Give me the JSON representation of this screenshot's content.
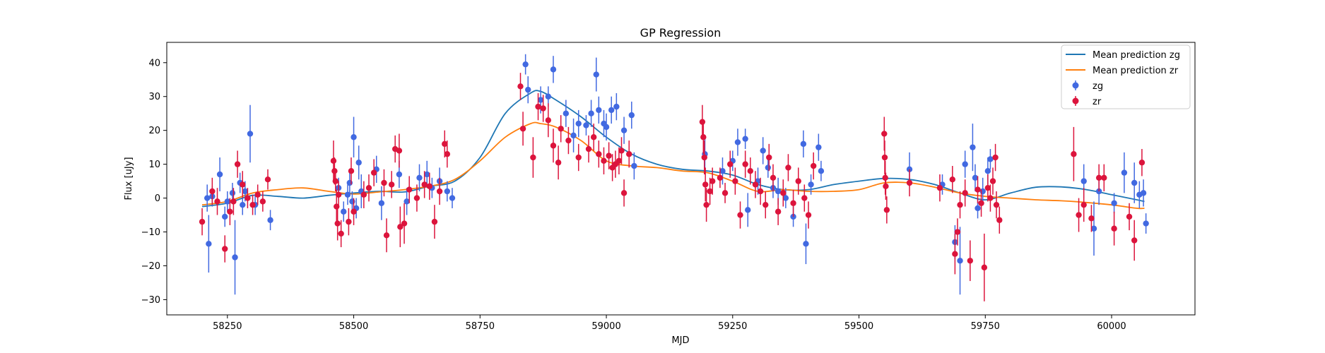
{
  "chart_data": {
    "type": "scatter",
    "title": "GP Regression",
    "xlabel": "MJD",
    "ylabel": "Flux [uJy]",
    "xlim": [
      58130,
      60165
    ],
    "ylim": [
      -34.5,
      46
    ],
    "x_ticks": [
      58250,
      58500,
      58750,
      59000,
      59250,
      59500,
      59750,
      60000
    ],
    "y_ticks": [
      -30,
      -20,
      -10,
      0,
      10,
      20,
      30,
      40
    ],
    "grid": false,
    "legend_position": "top-right",
    "legend": [
      {
        "label": "Mean prediction zg",
        "kind": "line",
        "color": "#1f77b4"
      },
      {
        "label": "Mean prediction zr",
        "kind": "line",
        "color": "#ff7f0e"
      },
      {
        "label": "zg",
        "kind": "errorbar",
        "color": "#4169e1"
      },
      {
        "label": "zr",
        "kind": "errorbar",
        "color": "#dc143c"
      }
    ],
    "lines": [
      {
        "name": "Mean prediction zg",
        "color": "#1f77b4",
        "x": [
          58200,
          58250,
          58300,
          58350,
          58400,
          58450,
          58500,
          58550,
          58600,
          58650,
          58700,
          58750,
          58800,
          58850,
          58870,
          58900,
          58950,
          59000,
          59050,
          59100,
          59150,
          59200,
          59250,
          59300,
          59350,
          59400,
          59450,
          59500,
          59550,
          59600,
          59650,
          59700,
          59750,
          59800,
          59850,
          59900,
          59950,
          60000,
          60050,
          60065
        ],
        "y": [
          -2.5,
          -1.5,
          0.8,
          0.5,
          0,
          0.8,
          1.5,
          2,
          1.8,
          3.5,
          5,
          12,
          25,
          31,
          31.5,
          29,
          24,
          18,
          13,
          10,
          8.5,
          8,
          6.8,
          4,
          2.5,
          2.5,
          4,
          5,
          5.8,
          5.5,
          4,
          1.5,
          -0.5,
          1.5,
          3.2,
          3.3,
          2.5,
          1,
          -0.5,
          -1
        ]
      },
      {
        "name": "Mean prediction zr",
        "color": "#ff7f0e",
        "x": [
          58200,
          58250,
          58300,
          58350,
          58400,
          58450,
          58500,
          58550,
          58600,
          58650,
          58700,
          58750,
          58800,
          58850,
          58870,
          58900,
          58950,
          59000,
          59050,
          59100,
          59150,
          59200,
          59250,
          59300,
          59350,
          59400,
          59450,
          59500,
          59550,
          59600,
          59650,
          59700,
          59750,
          59800,
          59850,
          59900,
          59950,
          60000,
          60050,
          60065
        ],
        "y": [
          -2,
          -1,
          1.5,
          2.5,
          3,
          2,
          1.2,
          1.8,
          2.5,
          3.5,
          5.5,
          11,
          18,
          22,
          22,
          21,
          17,
          11,
          9.5,
          9,
          8,
          7.5,
          5,
          2,
          2.5,
          2,
          2,
          2.5,
          4.5,
          4.5,
          3.2,
          1.5,
          0.5,
          0,
          -0.5,
          -0.8,
          -1.3,
          -2,
          -3,
          -3
        ]
      }
    ],
    "series": [
      {
        "name": "zg",
        "color": "#4169e1",
        "points": [
          [
            58210,
            0,
            4
          ],
          [
            58213,
            -13.5,
            8.5
          ],
          [
            58220,
            0.5,
            3
          ],
          [
            58235,
            7,
            5
          ],
          [
            58245,
            -5.5,
            3
          ],
          [
            58250,
            -1,
            3
          ],
          [
            58260,
            1.5,
            3
          ],
          [
            58265,
            -17.5,
            11
          ],
          [
            58275,
            4.5,
            3
          ],
          [
            58280,
            -2,
            3
          ],
          [
            58285,
            2,
            3
          ],
          [
            58295,
            19,
            8.5
          ],
          [
            58305,
            -2,
            3
          ],
          [
            58335,
            -6.5,
            3
          ],
          [
            58470,
            3,
            3
          ],
          [
            58480,
            -4,
            3
          ],
          [
            58488,
            1,
            3
          ],
          [
            58492,
            4.5,
            3
          ],
          [
            58497,
            -1,
            3
          ],
          [
            58500,
            18,
            6
          ],
          [
            58505,
            -3,
            3
          ],
          [
            58510,
            10.5,
            5
          ],
          [
            58515,
            2,
            5
          ],
          [
            58545,
            8.5,
            4
          ],
          [
            58555,
            -1.5,
            5
          ],
          [
            58590,
            7,
            4
          ],
          [
            58605,
            -1,
            4
          ],
          [
            58630,
            6,
            4
          ],
          [
            58645,
            7,
            4
          ],
          [
            58655,
            3,
            3
          ],
          [
            58670,
            5,
            4
          ],
          [
            58685,
            2,
            3
          ],
          [
            58695,
            0,
            3
          ],
          [
            58840,
            39.5,
            3
          ],
          [
            58845,
            32,
            4
          ],
          [
            58870,
            29,
            4
          ],
          [
            58885,
            30,
            3
          ],
          [
            58895,
            38,
            4
          ],
          [
            58920,
            25,
            4
          ],
          [
            58935,
            18.5,
            5
          ],
          [
            58945,
            22,
            4
          ],
          [
            58960,
            21.5,
            3
          ],
          [
            58970,
            25,
            4
          ],
          [
            58980,
            36.5,
            5
          ],
          [
            58985,
            26,
            4
          ],
          [
            58995,
            22,
            4
          ],
          [
            59000,
            21,
            4
          ],
          [
            59010,
            26,
            4
          ],
          [
            59020,
            27,
            4
          ],
          [
            59035,
            20,
            4
          ],
          [
            59050,
            24.5,
            4
          ],
          [
            59055,
            9.5,
            4
          ],
          [
            59195,
            13,
            5
          ],
          [
            59230,
            8,
            4
          ],
          [
            59250,
            11,
            3
          ],
          [
            59260,
            16.5,
            4
          ],
          [
            59275,
            17.5,
            3
          ],
          [
            59280,
            -3.5,
            5
          ],
          [
            59300,
            5,
            4
          ],
          [
            59310,
            14,
            4
          ],
          [
            59320,
            9,
            3
          ],
          [
            59330,
            3,
            3
          ],
          [
            59340,
            2,
            4
          ],
          [
            59355,
            0,
            3
          ],
          [
            59370,
            -5.5,
            3
          ],
          [
            59390,
            16,
            4
          ],
          [
            59395,
            -13.5,
            6
          ],
          [
            59405,
            4,
            3
          ],
          [
            59420,
            15,
            4
          ],
          [
            59425,
            8,
            3
          ],
          [
            59600,
            8.5,
            5
          ],
          [
            59665,
            4,
            3
          ],
          [
            59690,
            -13,
            5
          ],
          [
            59700,
            -18.5,
            10
          ],
          [
            59710,
            10,
            4
          ],
          [
            59725,
            15,
            7
          ],
          [
            59730,
            6,
            4
          ],
          [
            59735,
            -3,
            3
          ],
          [
            59745,
            2,
            4
          ],
          [
            59755,
            8,
            4
          ],
          [
            59760,
            11.5,
            3
          ],
          [
            59945,
            5,
            5
          ],
          [
            59965,
            -9,
            8
          ],
          [
            59975,
            2,
            4
          ],
          [
            60005,
            -1.5,
            3
          ],
          [
            60025,
            7.5,
            6
          ],
          [
            60045,
            4.5,
            6
          ],
          [
            60055,
            1,
            4
          ],
          [
            60063,
            1.5,
            4
          ],
          [
            60068,
            -7.5,
            3
          ]
        ]
      },
      {
        "name": "zr",
        "color": "#dc143c",
        "points": [
          [
            58200,
            -7,
            4
          ],
          [
            58220,
            2,
            4
          ],
          [
            58230,
            -1,
            4
          ],
          [
            58245,
            -15,
            4
          ],
          [
            58255,
            -4,
            4
          ],
          [
            58262,
            -1,
            4
          ],
          [
            58270,
            10,
            4
          ],
          [
            58280,
            4,
            4
          ],
          [
            58290,
            0,
            3
          ],
          [
            58300,
            -2,
            3
          ],
          [
            58310,
            1,
            3
          ],
          [
            58320,
            -1,
            3
          ],
          [
            58330,
            5.5,
            3
          ],
          [
            58460,
            11,
            6
          ],
          [
            58462,
            8,
            4
          ],
          [
            58464,
            5,
            3
          ],
          [
            58466,
            -2.5,
            5
          ],
          [
            58468,
            -7.5,
            5
          ],
          [
            58470,
            1,
            4
          ],
          [
            58475,
            -10.5,
            4
          ],
          [
            58490,
            -7,
            4
          ],
          [
            58495,
            8,
            4
          ],
          [
            58500,
            -4,
            4
          ],
          [
            58520,
            1,
            4
          ],
          [
            58530,
            3,
            4
          ],
          [
            58540,
            7.5,
            4
          ],
          [
            58560,
            4.5,
            4
          ],
          [
            58565,
            -11,
            5
          ],
          [
            58575,
            4,
            4
          ],
          [
            58582,
            14.5,
            4
          ],
          [
            58590,
            14,
            5
          ],
          [
            58592,
            -8.5,
            6
          ],
          [
            58600,
            -7.5,
            6
          ],
          [
            58610,
            2.5,
            4
          ],
          [
            58625,
            0,
            4
          ],
          [
            58640,
            4,
            4
          ],
          [
            58650,
            3.5,
            4
          ],
          [
            58660,
            -7,
            5
          ],
          [
            58670,
            2,
            4
          ],
          [
            58680,
            16,
            4
          ],
          [
            58685,
            13,
            4
          ],
          [
            58830,
            33,
            4
          ],
          [
            58835,
            20.5,
            5
          ],
          [
            58855,
            12,
            6
          ],
          [
            58865,
            27,
            4
          ],
          [
            58875,
            26.5,
            4
          ],
          [
            58885,
            23,
            5
          ],
          [
            58895,
            15.5,
            5
          ],
          [
            58905,
            10.5,
            5
          ],
          [
            58910,
            20.5,
            4
          ],
          [
            58925,
            17,
            4
          ],
          [
            58945,
            12,
            4
          ],
          [
            58965,
            14.5,
            4
          ],
          [
            58975,
            18,
            4
          ],
          [
            58985,
            13,
            4
          ],
          [
            58995,
            11,
            4
          ],
          [
            59005,
            12.5,
            4
          ],
          [
            59012,
            9,
            4
          ],
          [
            59018,
            10,
            4
          ],
          [
            59025,
            11,
            4
          ],
          [
            59030,
            14,
            4
          ],
          [
            59035,
            1.5,
            4
          ],
          [
            59045,
            13,
            4
          ],
          [
            59190,
            22.5,
            5
          ],
          [
            59192,
            18,
            5
          ],
          [
            59194,
            12,
            5
          ],
          [
            59196,
            4,
            5
          ],
          [
            59198,
            -2,
            5
          ],
          [
            59205,
            2,
            4
          ],
          [
            59210,
            5,
            4
          ],
          [
            59225,
            6,
            3
          ],
          [
            59235,
            1.5,
            3
          ],
          [
            59245,
            10,
            4
          ],
          [
            59255,
            5,
            4
          ],
          [
            59265,
            -5,
            4
          ],
          [
            59275,
            10,
            4
          ],
          [
            59285,
            8,
            4
          ],
          [
            59295,
            4,
            4
          ],
          [
            59305,
            2,
            4
          ],
          [
            59315,
            -2,
            4
          ],
          [
            59322,
            12,
            4
          ],
          [
            59330,
            6,
            4
          ],
          [
            59340,
            -4,
            4
          ],
          [
            59350,
            1.5,
            4
          ],
          [
            59360,
            9,
            4
          ],
          [
            59370,
            -1.5,
            4
          ],
          [
            59380,
            5,
            4
          ],
          [
            59392,
            0,
            4
          ],
          [
            59400,
            -5,
            4
          ],
          [
            59410,
            9.5,
            4
          ],
          [
            59550,
            19,
            5
          ],
          [
            59551,
            12,
            5
          ],
          [
            59552,
            6,
            5
          ],
          [
            59553,
            3.5,
            4
          ],
          [
            59555,
            -3.5,
            4
          ],
          [
            59600,
            4.5,
            4
          ],
          [
            59660,
            3,
            4
          ],
          [
            59685,
            5.5,
            4
          ],
          [
            59690,
            -16.5,
            6
          ],
          [
            59695,
            -10,
            4
          ],
          [
            59700,
            -2,
            4
          ],
          [
            59710,
            1.5,
            4
          ],
          [
            59720,
            -18.5,
            6
          ],
          [
            59735,
            2.5,
            4
          ],
          [
            59742,
            -1.5,
            4
          ],
          [
            59748,
            -20.5,
            10
          ],
          [
            59755,
            3,
            4
          ],
          [
            59760,
            0,
            4
          ],
          [
            59765,
            5,
            4
          ],
          [
            59770,
            12,
            4
          ],
          [
            59772,
            -2,
            4
          ],
          [
            59778,
            -6.5,
            4
          ],
          [
            59925,
            13,
            8
          ],
          [
            59935,
            -5,
            5
          ],
          [
            59945,
            -2,
            5
          ],
          [
            59960,
            -6,
            4
          ],
          [
            59975,
            6,
            4
          ],
          [
            59985,
            6,
            4
          ],
          [
            60005,
            -9,
            5
          ],
          [
            60035,
            -5.5,
            4
          ],
          [
            60045,
            -12.5,
            6
          ],
          [
            60060,
            10.5,
            4
          ]
        ]
      }
    ]
  }
}
